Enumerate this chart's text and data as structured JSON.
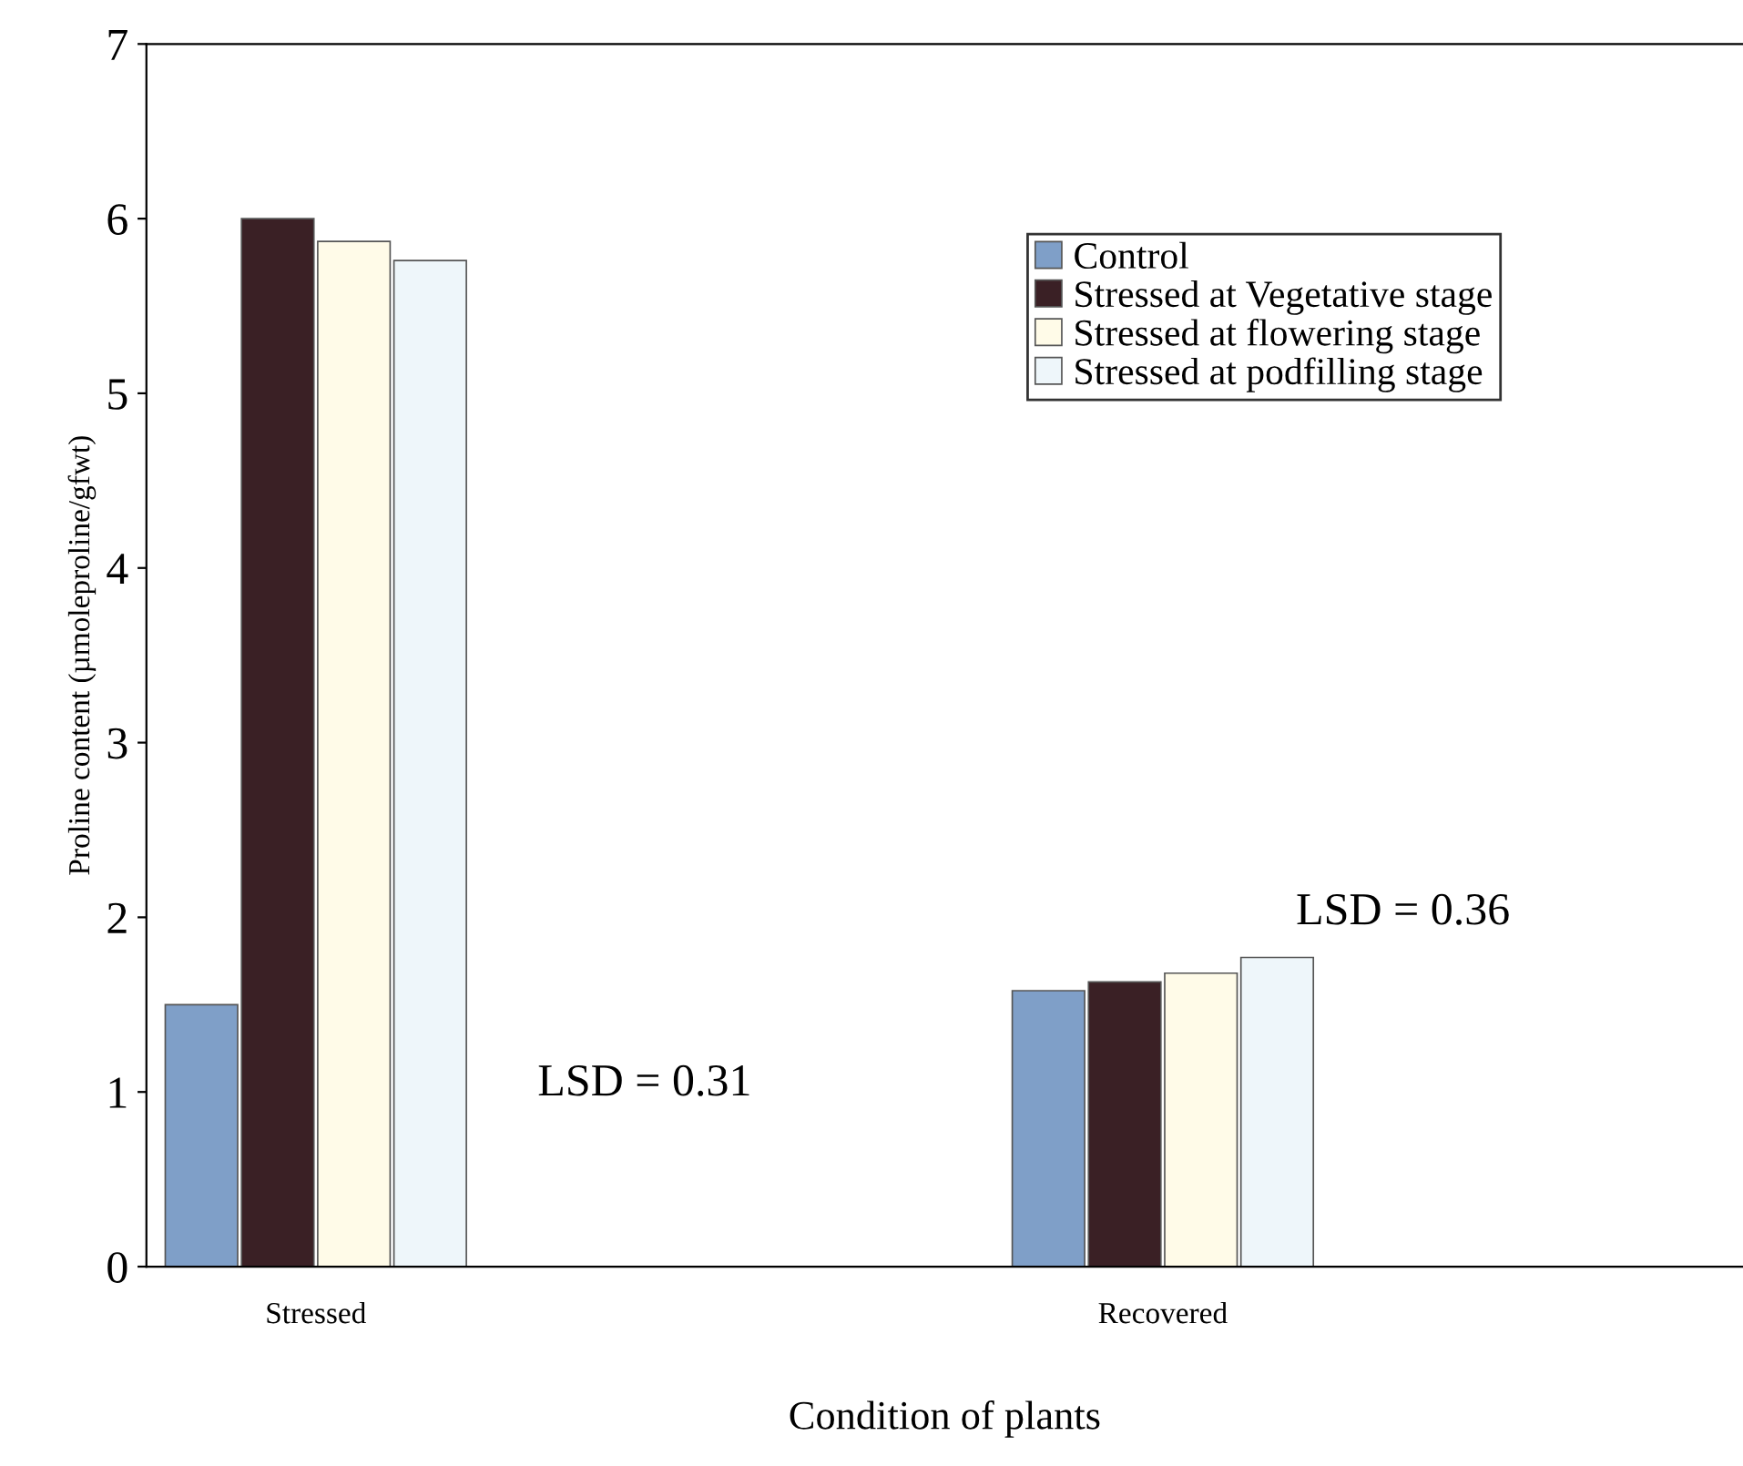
{
  "chart_data": {
    "type": "bar",
    "xlabel": "Condition of plants",
    "ylabel": "Proline content (µmoleproline/gfwt)",
    "categories": [
      "Stressed",
      "Recovered"
    ],
    "series": [
      {
        "name": "Control",
        "color": "#7f9fc8",
        "values": [
          1.5,
          1.58
        ]
      },
      {
        "name": "Stressed at Vegetative stage",
        "color": "#3a2025",
        "values": [
          6.0,
          1.63
        ]
      },
      {
        "name": "Stressed at flowering stage",
        "color": "#fffbe8",
        "values": [
          5.87,
          1.68
        ]
      },
      {
        "name": "Stressed at podfilling stage",
        "color": "#eef6fa",
        "values": [
          5.76,
          1.77
        ]
      }
    ],
    "ylim": [
      0,
      7
    ],
    "yticks": [
      0,
      1,
      2,
      3,
      4,
      5,
      6,
      7
    ],
    "grid": false,
    "legend": "top right",
    "annotations": [
      "LSD = 0.31",
      "LSD = 0.36"
    ]
  }
}
